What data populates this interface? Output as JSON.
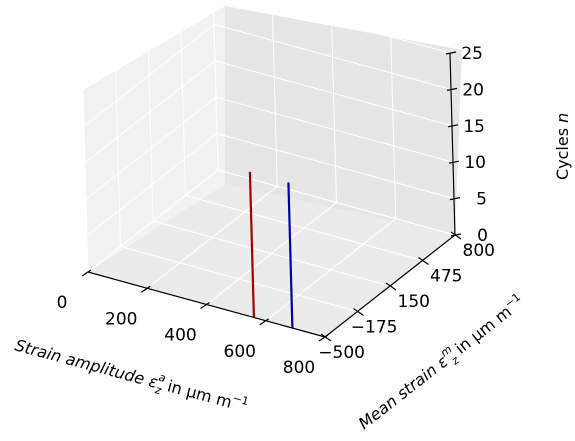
{
  "chart_data": {
    "type": "line3d",
    "x_axis": {
      "label": "Strain amplitude ε",
      "label_sub": "z",
      "label_sup": "a",
      "label_unit": " in µm m",
      "label_unit_sup": "−1",
      "ticks": [
        "0",
        "200",
        "400",
        "600",
        "800"
      ],
      "range": [
        0,
        800
      ]
    },
    "y_axis": {
      "label": "Mean strain ε",
      "label_sub": "z",
      "label_sup": "m",
      "label_unit": " in µm m",
      "label_unit_sup": "−1",
      "ticks": [
        "−500",
        "−175",
        "150",
        "475",
        "800"
      ],
      "range": [
        -500,
        800
      ]
    },
    "z_axis": {
      "label": "Cycles ",
      "label_italic": "n",
      "ticks": [
        "0",
        "5",
        "10",
        "15",
        "20",
        "25"
      ],
      "range": [
        0,
        25
      ]
    },
    "grid": true,
    "series": [
      {
        "color": "#aa0000",
        "x": [
          560,
          560
        ],
        "y": [
          -500,
          -500
        ],
        "z": [
          0,
          20
        ]
      },
      {
        "color": "#0000aa",
        "x": [
          690,
          690
        ],
        "y": [
          -500,
          -500
        ],
        "z": [
          0,
          20
        ]
      }
    ]
  }
}
